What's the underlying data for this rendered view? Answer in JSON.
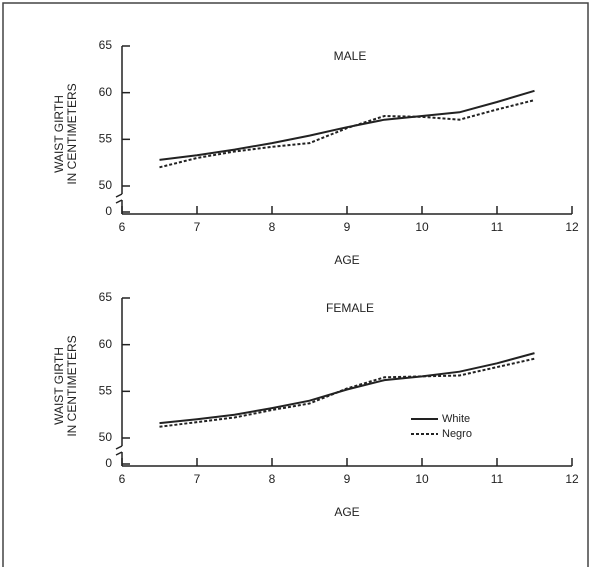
{
  "chart_data": [
    {
      "type": "line",
      "title": "MALE",
      "ylabel": [
        "WAIST GIRTH",
        "IN CENTIMETERS"
      ],
      "xlabel": "AGE",
      "x": [
        6.5,
        7,
        7.5,
        8,
        8.5,
        9,
        9.5,
        10,
        10.5,
        11,
        11.5
      ],
      "series": [
        {
          "color": "#222",
          "dashed": false,
          "values": [
            52.8,
            53.3,
            53.9,
            54.6,
            55.4,
            56.3,
            57.1,
            57.5,
            57.9,
            59.0,
            60.2
          ]
        },
        {
          "color": "#222",
          "dashed": true,
          "values": [
            52.0,
            53.0,
            53.7,
            54.2,
            54.6,
            56.2,
            57.5,
            57.4,
            57.1,
            58.2,
            59.2
          ]
        }
      ],
      "xlim": [
        6,
        12
      ],
      "xticks": [
        6,
        7,
        8,
        9,
        10,
        11,
        12
      ],
      "ylim": [
        0,
        65
      ],
      "yticks": [
        0,
        50,
        55,
        60,
        65
      ],
      "ybreak": [
        0,
        50
      ]
    },
    {
      "type": "line",
      "title": "FEMALE",
      "ylabel": [
        "WAIST GIRTH",
        "IN CENTIMETERS"
      ],
      "xlabel": "AGE",
      "x": [
        6.5,
        7,
        7.5,
        8,
        8.5,
        9,
        9.5,
        10,
        10.5,
        11,
        11.5
      ],
      "series": [
        {
          "name": "White",
          "color": "#222",
          "dashed": false,
          "values": [
            51.6,
            52.0,
            52.5,
            53.2,
            54.0,
            55.2,
            56.2,
            56.6,
            57.1,
            58.0,
            59.1
          ]
        },
        {
          "name": "Negro",
          "color": "#222",
          "dashed": true,
          "values": [
            51.2,
            51.7,
            52.2,
            53.0,
            53.7,
            55.3,
            56.5,
            56.6,
            56.7,
            57.6,
            58.5
          ]
        }
      ],
      "xlim": [
        6,
        12
      ],
      "xticks": [
        6,
        7,
        8,
        9,
        10,
        11,
        12
      ],
      "ylim": [
        0,
        65
      ],
      "yticks": [
        0,
        50,
        55,
        60,
        65
      ],
      "ybreak": [
        0,
        50
      ],
      "legend": "lower right"
    }
  ]
}
